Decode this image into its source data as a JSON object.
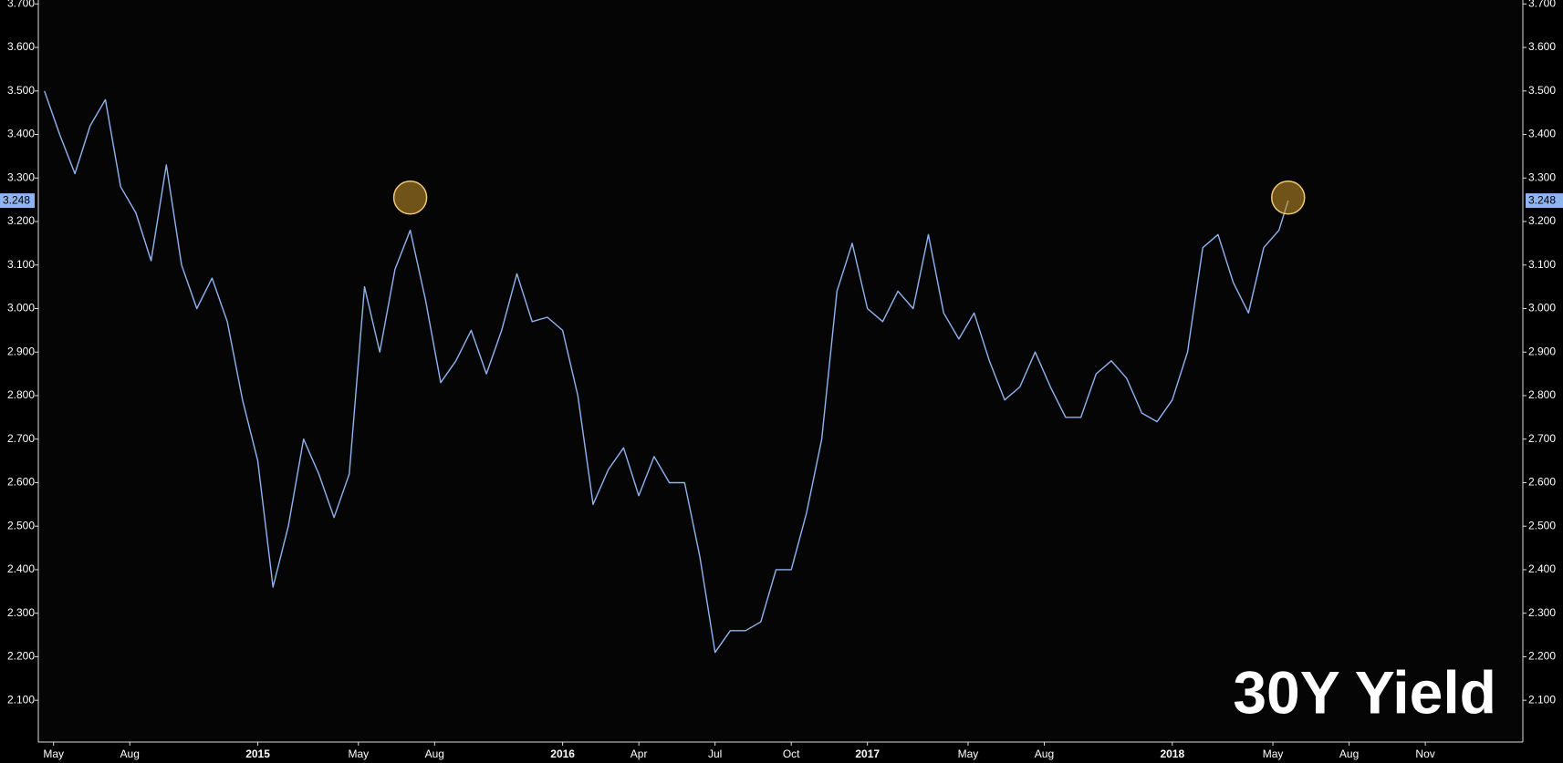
{
  "chart_data": {
    "type": "line",
    "title": "30Y Yield",
    "x": [
      2014.3,
      2014.35,
      2014.4,
      2014.45,
      2014.5,
      2014.55,
      2014.6,
      2014.65,
      2014.7,
      2014.75,
      2014.8,
      2014.85,
      2014.9,
      2014.95,
      2015.0,
      2015.05,
      2015.1,
      2015.15,
      2015.2,
      2015.25,
      2015.3,
      2015.35,
      2015.4,
      2015.45,
      2015.5,
      2015.55,
      2015.6,
      2015.65,
      2015.7,
      2015.75,
      2015.8,
      2015.85,
      2015.9,
      2015.95,
      2016.0,
      2016.05,
      2016.1,
      2016.15,
      2016.2,
      2016.25,
      2016.3,
      2016.35,
      2016.4,
      2016.45,
      2016.5,
      2016.55,
      2016.6,
      2016.65,
      2016.7,
      2016.75,
      2016.8,
      2016.85,
      2016.9,
      2016.95,
      2017.0,
      2017.05,
      2017.1,
      2017.15,
      2017.2,
      2017.25,
      2017.3,
      2017.35,
      2017.4,
      2017.45,
      2017.5,
      2017.55,
      2017.6,
      2017.65,
      2017.7,
      2017.75,
      2017.8,
      2017.85,
      2017.9,
      2017.95,
      2018.0,
      2018.05,
      2018.1,
      2018.15,
      2018.2,
      2018.25,
      2018.3,
      2018.35,
      2018.38
    ],
    "series": [
      {
        "color": "#8fb4f0",
        "values": [
          3.5,
          3.4,
          3.31,
          3.42,
          3.48,
          3.28,
          3.22,
          3.11,
          3.33,
          3.1,
          3.0,
          3.07,
          2.97,
          2.79,
          2.65,
          2.36,
          2.5,
          2.7,
          2.62,
          2.52,
          2.62,
          3.05,
          2.9,
          3.09,
          3.18,
          3.02,
          2.83,
          2.88,
          2.95,
          2.85,
          2.95,
          3.08,
          2.97,
          2.98,
          2.95,
          2.8,
          2.55,
          2.63,
          2.68,
          2.57,
          2.66,
          2.6,
          2.6,
          2.43,
          2.21,
          2.26,
          2.26,
          2.28,
          2.4,
          2.4,
          2.53,
          2.7,
          3.04,
          3.15,
          3.0,
          2.97,
          3.04,
          3.0,
          3.17,
          2.99,
          2.93,
          2.99,
          2.88,
          2.79,
          2.82,
          2.9,
          2.82,
          2.75,
          2.75,
          2.85,
          2.88,
          2.84,
          2.76,
          2.74,
          2.79,
          2.9,
          3.14,
          3.17,
          3.06,
          2.99,
          3.14,
          3.18,
          3.248
        ]
      }
    ],
    "last_value": {
      "value": 3.248,
      "label": "3.248"
    },
    "highlights": [
      {
        "x": 2015.5,
        "y": 3.255,
        "color": "#c8942a"
      },
      {
        "x": 2018.38,
        "y": 3.255,
        "color": "#c8942a"
      }
    ],
    "xlim": [
      2014.28,
      2019.15
    ],
    "ylim": [
      2.004,
      3.709
    ],
    "xticks": [
      {
        "value": 2014.33,
        "label": "May"
      },
      {
        "value": 2014.58,
        "label": "Aug"
      },
      {
        "value": 2015,
        "label": "2015"
      },
      {
        "value": 2015.33,
        "label": "May"
      },
      {
        "value": 2015.58,
        "label": "Aug"
      },
      {
        "value": 2016,
        "label": "2016"
      },
      {
        "value": 2016.25,
        "label": "Apr"
      },
      {
        "value": 2016.5,
        "label": "Jul"
      },
      {
        "value": 2016.75,
        "label": "Oct"
      },
      {
        "value": 2017,
        "label": "2017"
      },
      {
        "value": 2017.33,
        "label": "May"
      },
      {
        "value": 2017.58,
        "label": "Aug"
      },
      {
        "value": 2018,
        "label": "2018"
      },
      {
        "value": 2018.33,
        "label": "May"
      },
      {
        "value": 2018.58,
        "label": "Aug"
      },
      {
        "value": 2018.83,
        "label": "Nov"
      }
    ],
    "yticks": [
      {
        "value": 2.1,
        "label": "2.100"
      },
      {
        "value": 2.2,
        "label": "2.200"
      },
      {
        "value": 2.3,
        "label": "2.300"
      },
      {
        "value": 2.4,
        "label": "2.400"
      },
      {
        "value": 2.5,
        "label": "2.500"
      },
      {
        "value": 2.6,
        "label": "2.600"
      },
      {
        "value": 2.7,
        "label": "2.700"
      },
      {
        "value": 2.8,
        "label": "2.800"
      },
      {
        "value": 2.9,
        "label": "2.900"
      },
      {
        "value": 3.0,
        "label": "3.000"
      },
      {
        "value": 3.1,
        "label": "3.100"
      },
      {
        "value": 3.2,
        "label": "3.200"
      },
      {
        "value": 3.3,
        "label": "3.300"
      },
      {
        "value": 3.4,
        "label": "3.400"
      },
      {
        "value": 3.5,
        "label": "3.500"
      },
      {
        "value": 3.6,
        "label": "3.600"
      },
      {
        "value": 3.7,
        "label": "3.700"
      }
    ]
  }
}
